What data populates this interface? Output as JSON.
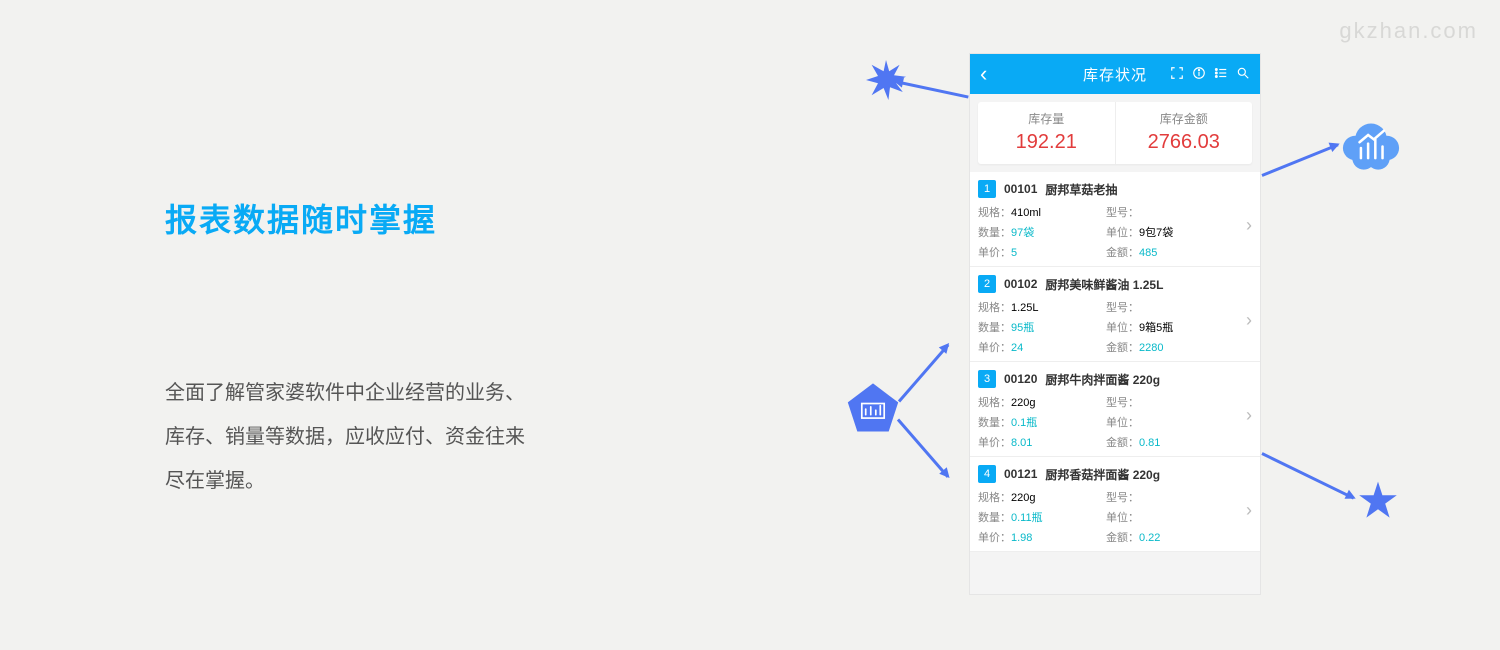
{
  "watermark": "gkzhan.com",
  "headline": "报表数据随时掌握",
  "description_lines": [
    "全面了解管家婆软件中企业经营的业务、",
    "库存、销量等数据，应收应付、资金往来",
    "尽在掌握。"
  ],
  "colors": {
    "accent": "#09aaf5",
    "danger": "#e23c3c",
    "teal": "#09b9c9",
    "decoration": "#5076f2",
    "bg": "#f2f2f0"
  },
  "app": {
    "title": "库存状况",
    "summary": [
      {
        "label": "库存量",
        "value": "192.21"
      },
      {
        "label": "库存金额",
        "value": "2766.03"
      }
    ],
    "field_labels": {
      "spec": "规格：",
      "model": "型号：",
      "qty": "数量：",
      "unit": "单位：",
      "price": "单价：",
      "amount": "金额："
    },
    "items": [
      {
        "n": "1",
        "code": "00101",
        "name": "厨邦草菇老抽",
        "spec": "410ml",
        "model": "",
        "qty": "97袋",
        "unit": "9包7袋",
        "price": "5",
        "amount": "485"
      },
      {
        "n": "2",
        "code": "00102",
        "name": "厨邦美味鲜酱油 1.25L",
        "spec": "1.25L",
        "model": "",
        "qty": "95瓶",
        "unit": "9箱5瓶",
        "price": "24",
        "amount": "2280"
      },
      {
        "n": "3",
        "code": "00120",
        "name": "厨邦牛肉拌面酱 220g",
        "spec": "220g",
        "model": "",
        "qty": "0.1瓶",
        "unit": "",
        "price": "8.01",
        "amount": "0.81"
      },
      {
        "n": "4",
        "code": "00121",
        "name": "厨邦香菇拌面酱 220g",
        "spec": "220g",
        "model": "",
        "qty": "0.11瓶",
        "unit": "",
        "price": "1.98",
        "amount": "0.22"
      }
    ]
  }
}
